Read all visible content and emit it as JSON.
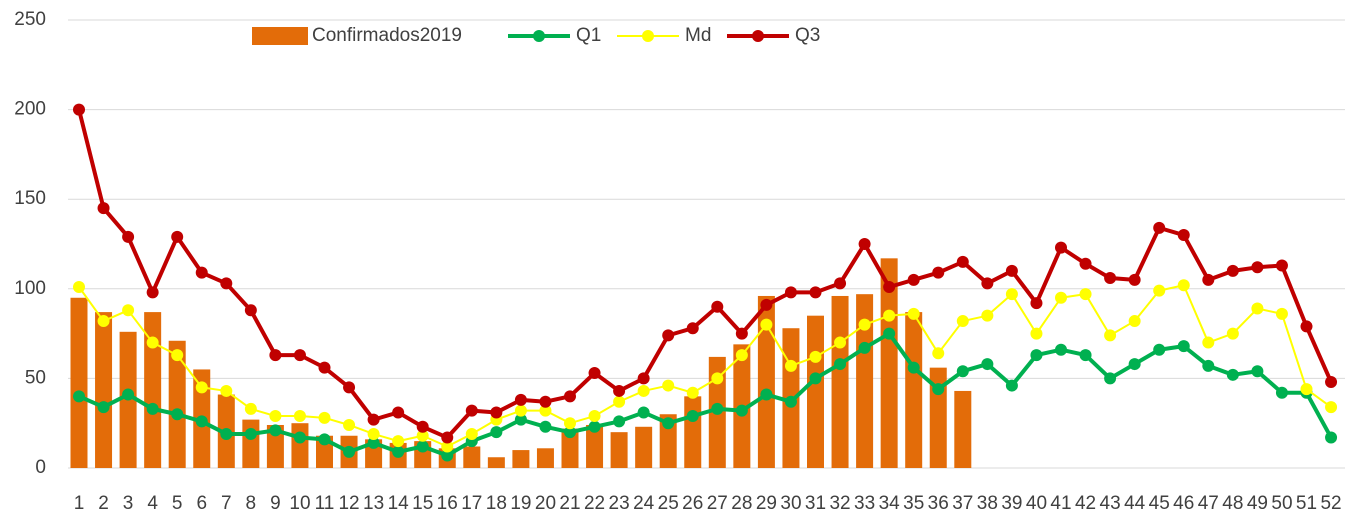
{
  "chart_data": {
    "type": "combo",
    "categories": [
      1,
      2,
      3,
      4,
      5,
      6,
      7,
      8,
      9,
      10,
      11,
      12,
      13,
      14,
      15,
      16,
      17,
      18,
      19,
      20,
      21,
      22,
      23,
      24,
      25,
      26,
      27,
      28,
      29,
      30,
      31,
      32,
      33,
      34,
      35,
      36,
      37,
      38,
      39,
      40,
      41,
      42,
      43,
      44,
      45,
      46,
      47,
      48,
      49,
      50,
      51,
      52
    ],
    "series": [
      {
        "name": "Confirmados2019",
        "type": "bar",
        "color": "#e36c09",
        "values": [
          95,
          87,
          76,
          87,
          71,
          55,
          41,
          27,
          24,
          25,
          18,
          18,
          16,
          14,
          15,
          11,
          12,
          6,
          10,
          11,
          22,
          24,
          20,
          23,
          30,
          40,
          62,
          69,
          96,
          78,
          85,
          96,
          97,
          117,
          87,
          56,
          43,
          null,
          null,
          null,
          null,
          null,
          null,
          null,
          null,
          null,
          null,
          null,
          null,
          null,
          null,
          null
        ]
      },
      {
        "name": "Q1",
        "type": "line",
        "color": "#00b050",
        "values": [
          40,
          34,
          41,
          33,
          30,
          26,
          19,
          19,
          21,
          17,
          16,
          9,
          14,
          9,
          12,
          7,
          15,
          20,
          27,
          23,
          20,
          23,
          26,
          31,
          25,
          29,
          33,
          32,
          41,
          37,
          50,
          58,
          67,
          75,
          56,
          44,
          54,
          58,
          46,
          63,
          66,
          63,
          50,
          58,
          66,
          68,
          57,
          52,
          54,
          42,
          42,
          17
        ]
      },
      {
        "name": "Md",
        "type": "line",
        "color": "#ffff00",
        "values": [
          101,
          82,
          88,
          70,
          63,
          45,
          43,
          33,
          29,
          29,
          28,
          24,
          19,
          15,
          18,
          12,
          19,
          27,
          32,
          32,
          25,
          29,
          37,
          43,
          46,
          42,
          50,
          63,
          80,
          57,
          62,
          70,
          80,
          85,
          86,
          64,
          82,
          85,
          97,
          75,
          95,
          97,
          74,
          82,
          99,
          102,
          70,
          75,
          89,
          86,
          44,
          34
        ]
      },
      {
        "name": "Q3",
        "type": "line",
        "color": "#c00000",
        "values": [
          200,
          145,
          129,
          98,
          129,
          109,
          103,
          88,
          63,
          63,
          56,
          45,
          27,
          31,
          23,
          17,
          32,
          31,
          38,
          37,
          40,
          53,
          43,
          50,
          74,
          78,
          90,
          75,
          91,
          98,
          98,
          103,
          125,
          101,
          105,
          109,
          115,
          103,
          110,
          92,
          123,
          114,
          106,
          105,
          134,
          130,
          105,
          110,
          112,
          113,
          79,
          48
        ]
      }
    ],
    "ylim": [
      0,
      250
    ],
    "yticks": [
      0,
      50,
      100,
      150,
      200,
      250
    ],
    "grid": true,
    "legend": "top"
  }
}
